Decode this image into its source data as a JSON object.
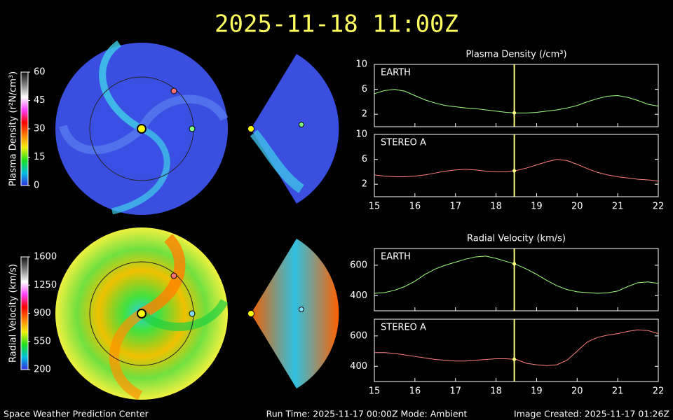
{
  "title": "2025-11-18 11:00Z",
  "footer": {
    "left": "Space Weather Prediction Center",
    "center": "Run Time: 2025-11-17 00:00Z  Mode: Ambient",
    "right": "Image Created: 2025-11-17 01:26Z"
  },
  "chart_data": [
    {
      "type": "line",
      "title": "Plasma Density (/cm³)",
      "x": [
        15,
        15.25,
        15.5,
        15.75,
        16,
        16.25,
        16.5,
        16.75,
        17,
        17.25,
        17.5,
        17.75,
        18,
        18.25,
        18.5,
        18.75,
        19,
        19.25,
        19.5,
        19.75,
        20,
        20.25,
        20.5,
        20.75,
        21,
        21.25,
        21.5,
        21.75,
        22
      ],
      "xlim": [
        15,
        22
      ],
      "xticks": [
        15,
        16,
        17,
        18,
        19,
        20,
        21,
        22
      ],
      "current_time": 18.45,
      "current_time_color": "#ffff80",
      "panels": [
        {
          "ylim": [
            0,
            10
          ],
          "yticks": [
            2,
            6,
            10
          ],
          "series": [
            {
              "name": "EARTH",
              "color": "#a0ff80",
              "values": [
                5.3,
                5.8,
                6.0,
                5.7,
                5.0,
                4.3,
                3.8,
                3.4,
                3.2,
                3.0,
                2.9,
                2.7,
                2.5,
                2.3,
                2.2,
                2.2,
                2.3,
                2.5,
                2.7,
                3.0,
                3.4,
                4.0,
                4.5,
                4.9,
                5.0,
                4.7,
                4.2,
                3.6,
                3.3
              ]
            }
          ]
        },
        {
          "ylim": [
            0,
            10
          ],
          "yticks": [
            2,
            6,
            10
          ],
          "series": [
            {
              "name": "STEREO A",
              "color": "#ff8080",
              "values": [
                3.5,
                3.3,
                3.2,
                3.2,
                3.3,
                3.5,
                3.8,
                4.1,
                4.3,
                4.4,
                4.3,
                4.1,
                4.0,
                4.0,
                4.2,
                4.6,
                5.1,
                5.6,
                6.0,
                5.8,
                5.2,
                4.5,
                3.9,
                3.5,
                3.2,
                3.0,
                2.8,
                2.7,
                2.5
              ]
            }
          ]
        }
      ]
    },
    {
      "type": "line",
      "title": "Radial Velocity (km/s)",
      "x": [
        15,
        15.25,
        15.5,
        15.75,
        16,
        16.25,
        16.5,
        16.75,
        17,
        17.25,
        17.5,
        17.75,
        18,
        18.25,
        18.5,
        18.75,
        19,
        19.25,
        19.5,
        19.75,
        20,
        20.25,
        20.5,
        20.75,
        21,
        21.25,
        21.5,
        21.75,
        22
      ],
      "xlim": [
        15,
        22
      ],
      "xticks": [
        15,
        16,
        17,
        18,
        19,
        20,
        21,
        22
      ],
      "current_time": 18.45,
      "current_time_color": "#ffff80",
      "panels": [
        {
          "ylim": [
            300,
            710
          ],
          "yticks": [
            400,
            600
          ],
          "series": [
            {
              "name": "EARTH",
              "color": "#a0ff80",
              "values": [
                415,
                420,
                435,
                460,
                495,
                540,
                575,
                600,
                620,
                640,
                655,
                660,
                645,
                625,
                605,
                575,
                540,
                500,
                465,
                440,
                425,
                420,
                415,
                418,
                430,
                460,
                485,
                490,
                480
              ]
            }
          ]
        },
        {
          "ylim": [
            300,
            710
          ],
          "yticks": [
            400,
            600
          ],
          "series": [
            {
              "name": "STEREO A",
              "color": "#ff8080",
              "values": [
                490,
                490,
                485,
                475,
                465,
                455,
                445,
                440,
                435,
                435,
                440,
                445,
                450,
                450,
                445,
                420,
                410,
                405,
                410,
                440,
                500,
                560,
                590,
                605,
                615,
                630,
                640,
                635,
                615
              ]
            }
          ]
        }
      ]
    },
    {
      "type": "colorbar",
      "label": "Plasma Density (r²N/cm³)",
      "ylim": [
        0,
        60
      ],
      "yticks": [
        0,
        15,
        30,
        45,
        60
      ],
      "colors": [
        "#3030e0",
        "#00c0e0",
        "#20e020",
        "#f0f000",
        "#ff8000",
        "#ff0000",
        "#ff40ff",
        "#ffffff",
        "#808080",
        "#101010"
      ]
    },
    {
      "type": "colorbar",
      "label": "Radial Velocity (km/s)",
      "ylim": [
        200,
        1600
      ],
      "yticks": [
        200,
        550,
        900,
        1250,
        1600
      ],
      "colors": [
        "#3030e0",
        "#00c0e0",
        "#20e020",
        "#f0f000",
        "#ff8000",
        "#ff0000",
        "#ff40ff",
        "#ffffff",
        "#808080",
        "#101010"
      ]
    }
  ]
}
